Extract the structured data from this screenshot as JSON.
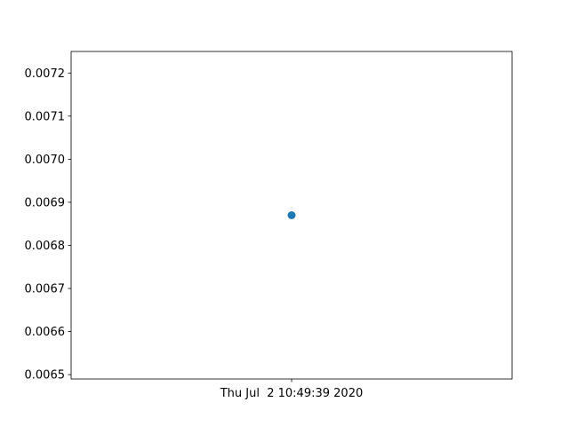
{
  "chart_data": {
    "type": "scatter",
    "title": "",
    "xlabel": "",
    "ylabel": "",
    "grid": false,
    "x_tick_labels": [
      "Thu Jul  2 10:49:39 2020"
    ],
    "points": [
      {
        "x": "Thu Jul  2 10:49:39 2020",
        "y": 0.00687
      }
    ],
    "ylim": [
      0.00649,
      0.00725
    ],
    "y_ticks": [
      0.0065,
      0.0066,
      0.0067,
      0.0068,
      0.0069,
      0.007,
      0.0071,
      0.0072
    ],
    "y_tick_labels": [
      "0.0065",
      "0.0066",
      "0.0067",
      "0.0068",
      "0.0069",
      "0.0070",
      "0.0071",
      "0.0072"
    ],
    "colors": {
      "marker": "#1f77b4",
      "axes": "#000000",
      "background": "#ffffff"
    }
  }
}
